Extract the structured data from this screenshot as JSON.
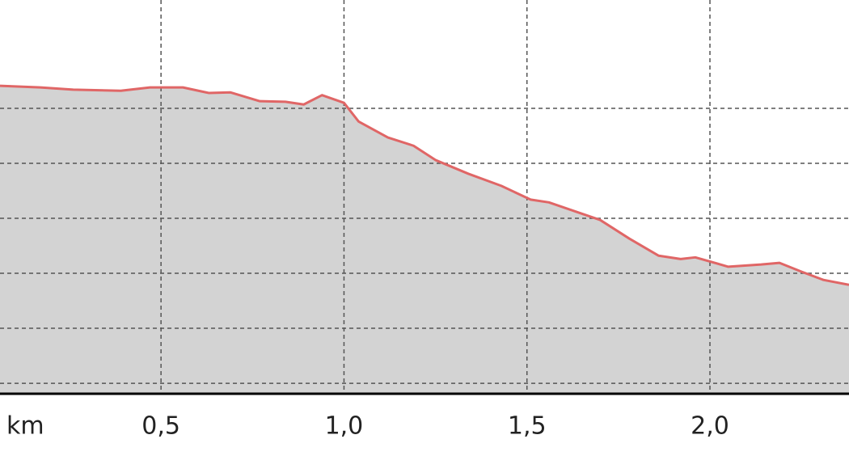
{
  "chart_data": {
    "type": "area",
    "x_label": "km",
    "x": [
      0.06,
      0.17,
      0.26,
      0.39,
      0.47,
      0.56,
      0.63,
      0.69,
      0.77,
      0.84,
      0.89,
      0.94,
      1.0,
      1.04,
      1.12,
      1.19,
      1.25,
      1.34,
      1.43,
      1.51,
      1.56,
      1.7,
      1.78,
      1.86,
      1.92,
      1.96,
      2.05,
      2.14,
      2.19,
      2.25,
      2.31,
      2.38
    ],
    "values": [
      5.41,
      5.38,
      5.34,
      5.32,
      5.38,
      5.38,
      5.28,
      5.29,
      5.13,
      5.12,
      5.07,
      5.24,
      5.1,
      4.76,
      4.47,
      4.32,
      4.06,
      3.81,
      3.59,
      3.34,
      3.29,
      2.97,
      2.63,
      2.32,
      2.26,
      2.29,
      2.12,
      2.16,
      2.19,
      2.03,
      1.88,
      1.79
    ],
    "color": "#e06666",
    "fill": "#d3d3d3",
    "xlim": [
      0.06,
      2.38
    ],
    "xticks": [
      {
        "value": 0.5,
        "label": "0,5"
      },
      {
        "value": 1.0,
        "label": "1,0"
      },
      {
        "value": 1.5,
        "label": "1,5"
      },
      {
        "value": 2.0,
        "label": "2,0"
      }
    ],
    "ylim": [
      -0.19,
      6.97
    ],
    "yticks": [
      0,
      1,
      2,
      3,
      4,
      5
    ],
    "grid": true
  }
}
